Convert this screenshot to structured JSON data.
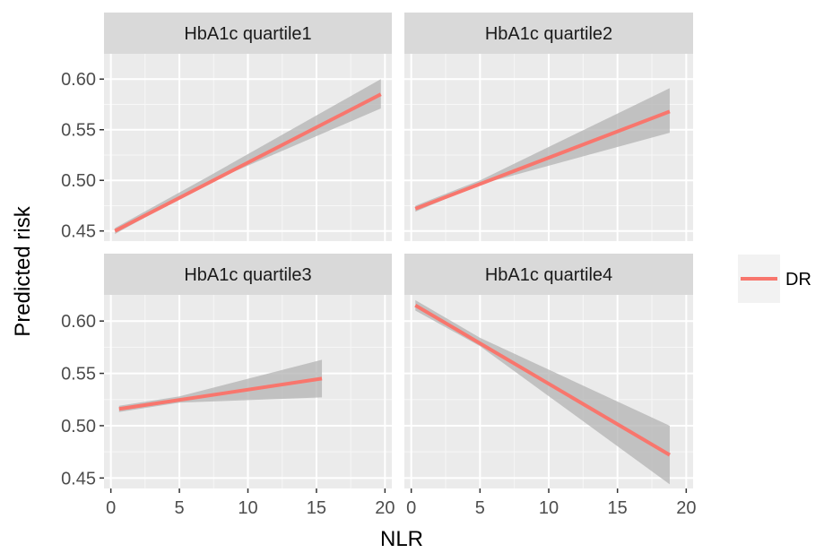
{
  "chart_data": {
    "type": "line",
    "xlabel": "NLR",
    "ylabel": "Predicted risk",
    "xlim": [
      -0.5,
      20.5
    ],
    "ylim": [
      0.44,
      0.625
    ],
    "x_ticks": [
      0,
      5,
      10,
      15,
      20
    ],
    "x_tick_labels": [
      "0",
      "5",
      "10",
      "15",
      "20"
    ],
    "y_ticks": [
      0.45,
      0.5,
      0.55,
      0.6
    ],
    "y_tick_labels": [
      "0.45",
      "0.50",
      "0.55",
      "0.60"
    ],
    "grid": true,
    "background": "#ebebeb",
    "line_color": "#f8766d",
    "band_color": "#b3b3b3",
    "legend": {
      "placement": "right",
      "entries": [
        {
          "label": "DR",
          "color": "#f8766d"
        }
      ]
    },
    "panels": [
      {
        "title": "HbA1c quartile1",
        "series": [
          {
            "name": "DR",
            "x": [
              0.3,
              19.7
            ],
            "y": [
              0.45,
              0.585
            ],
            "band": {
              "x": [
                0.3,
                7,
                19.7
              ],
              "lower": [
                0.447,
                0.497,
                0.571
              ],
              "upper": [
                0.453,
                0.503,
                0.6
              ]
            }
          }
        ]
      },
      {
        "title": "HbA1c quartile2",
        "series": [
          {
            "name": "DR",
            "x": [
              0.3,
              18.8
            ],
            "y": [
              0.472,
              0.568
            ],
            "band": {
              "x": [
                0.3,
                5,
                18.8
              ],
              "lower": [
                0.469,
                0.496,
                0.547
              ],
              "upper": [
                0.475,
                0.5,
                0.591
              ]
            }
          }
        ]
      },
      {
        "title": "HbA1c quartile3",
        "series": [
          {
            "name": "DR",
            "x": [
              0.6,
              15.4
            ],
            "y": [
              0.516,
              0.545
            ],
            "band": {
              "x": [
                0.6,
                5,
                15.4
              ],
              "lower": [
                0.513,
                0.522,
                0.527
              ],
              "upper": [
                0.519,
                0.528,
                0.563
              ]
            }
          }
        ]
      },
      {
        "title": "HbA1c quartile4",
        "series": [
          {
            "name": "DR",
            "x": [
              0.3,
              18.8
            ],
            "y": [
              0.615,
              0.472
            ],
            "band": {
              "x": [
                0.3,
                5,
                18.8
              ],
              "lower": [
                0.61,
                0.576,
                0.444
              ],
              "upper": [
                0.62,
                0.584,
                0.5
              ]
            }
          }
        ]
      }
    ]
  }
}
